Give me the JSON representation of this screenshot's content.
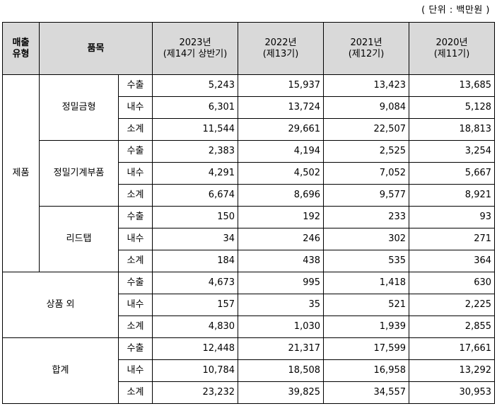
{
  "unit_note": "( 단위 : 백만원 )",
  "headers": {
    "type_line1": "매출",
    "type_line2": "유형",
    "item": "품목",
    "years": [
      {
        "year": "2023년",
        "period": "(제14기 상반기)"
      },
      {
        "year": "2022년",
        "period": "(제13기)"
      },
      {
        "year": "2021년",
        "period": "(제12기)"
      },
      {
        "year": "2020년",
        "period": "(제11기)"
      }
    ]
  },
  "groups": [
    {
      "type": "제품",
      "items": [
        {
          "name": "정밀금형",
          "rows": [
            {
              "label": "수출",
              "values": [
                "5,243",
                "15,937",
                "13,423",
                "13,685"
              ]
            },
            {
              "label": "내수",
              "values": [
                "6,301",
                "13,724",
                "9,084",
                "5,128"
              ]
            },
            {
              "label": "소계",
              "values": [
                "11,544",
                "29,661",
                "22,507",
                "18,813"
              ]
            }
          ]
        },
        {
          "name": "정밀기계부품",
          "rows": [
            {
              "label": "수출",
              "values": [
                "2,383",
                "4,194",
                "2,525",
                "3,254"
              ]
            },
            {
              "label": "내수",
              "values": [
                "4,291",
                "4,502",
                "7,052",
                "5,667"
              ]
            },
            {
              "label": "소계",
              "values": [
                "6,674",
                "8,696",
                "9,577",
                "8,921"
              ]
            }
          ]
        },
        {
          "name": "리드탭",
          "rows": [
            {
              "label": "수출",
              "values": [
                "150",
                "192",
                "233",
                "93"
              ]
            },
            {
              "label": "내수",
              "values": [
                "34",
                "246",
                "302",
                "271"
              ]
            },
            {
              "label": "소계",
              "values": [
                "184",
                "438",
                "535",
                "364"
              ]
            }
          ]
        }
      ]
    },
    {
      "type": "상품 외",
      "rows": [
        {
          "label": "수출",
          "values": [
            "4,673",
            "995",
            "1,418",
            "630"
          ]
        },
        {
          "label": "내수",
          "values": [
            "157",
            "35",
            "521",
            "2,225"
          ]
        },
        {
          "label": "소계",
          "values": [
            "4,830",
            "1,030",
            "1,939",
            "2,855"
          ]
        }
      ]
    },
    {
      "type": "합계",
      "rows": [
        {
          "label": "수출",
          "values": [
            "12,448",
            "21,317",
            "17,599",
            "17,661"
          ]
        },
        {
          "label": "내수",
          "values": [
            "10,784",
            "18,508",
            "16,958",
            "13,292"
          ]
        },
        {
          "label": "소계",
          "values": [
            "23,232",
            "39,825",
            "34,557",
            "30,953"
          ]
        }
      ]
    }
  ]
}
